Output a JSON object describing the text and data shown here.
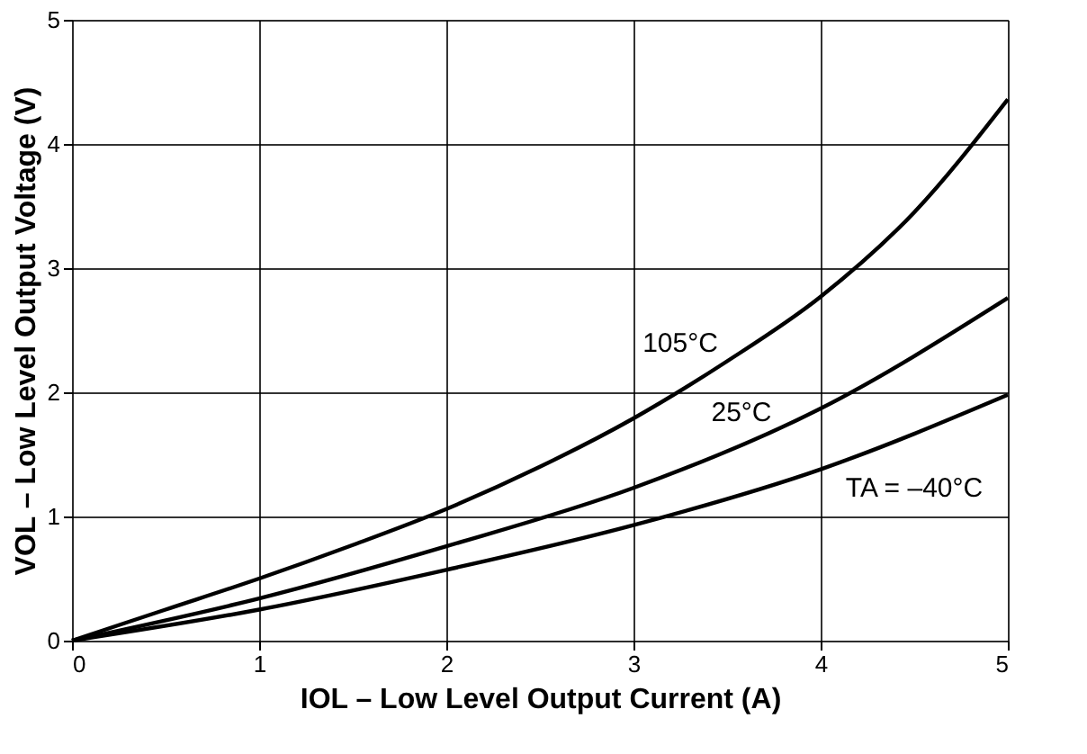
{
  "chart_data": {
    "type": "line",
    "xlabel": "IOL – Low Level Output Current  (A)",
    "ylabel": "VOL – Low Level Output Voltage  (V)",
    "xlim": [
      0,
      5
    ],
    "ylim": [
      0,
      5
    ],
    "xticks": [
      0,
      1,
      2,
      3,
      4,
      5
    ],
    "yticks": [
      0,
      1,
      2,
      3,
      4,
      5
    ],
    "data_labels": false,
    "grid": true,
    "legend": false,
    "marker": "none",
    "line_style": "solid",
    "series": [
      {
        "name": "105°C",
        "color": "#000000",
        "x": [
          0,
          0.5,
          1,
          1.5,
          2,
          2.5,
          3,
          3.5,
          4,
          4.5,
          5
        ],
        "values": [
          0,
          0.25,
          0.5,
          0.77,
          1.06,
          1.4,
          1.79,
          2.25,
          2.77,
          3.45,
          4.36
        ]
      },
      {
        "name": "25°C",
        "color": "#000000",
        "x": [
          0,
          1,
          2,
          3,
          4,
          5
        ],
        "values": [
          0,
          0.34,
          0.76,
          1.23,
          1.87,
          2.76
        ]
      },
      {
        "name": "TA = –40°C",
        "color": "#000000",
        "x": [
          0,
          1,
          2,
          3,
          4,
          5
        ],
        "values": [
          0,
          0.25,
          0.57,
          0.93,
          1.38,
          1.98
        ]
      }
    ]
  }
}
